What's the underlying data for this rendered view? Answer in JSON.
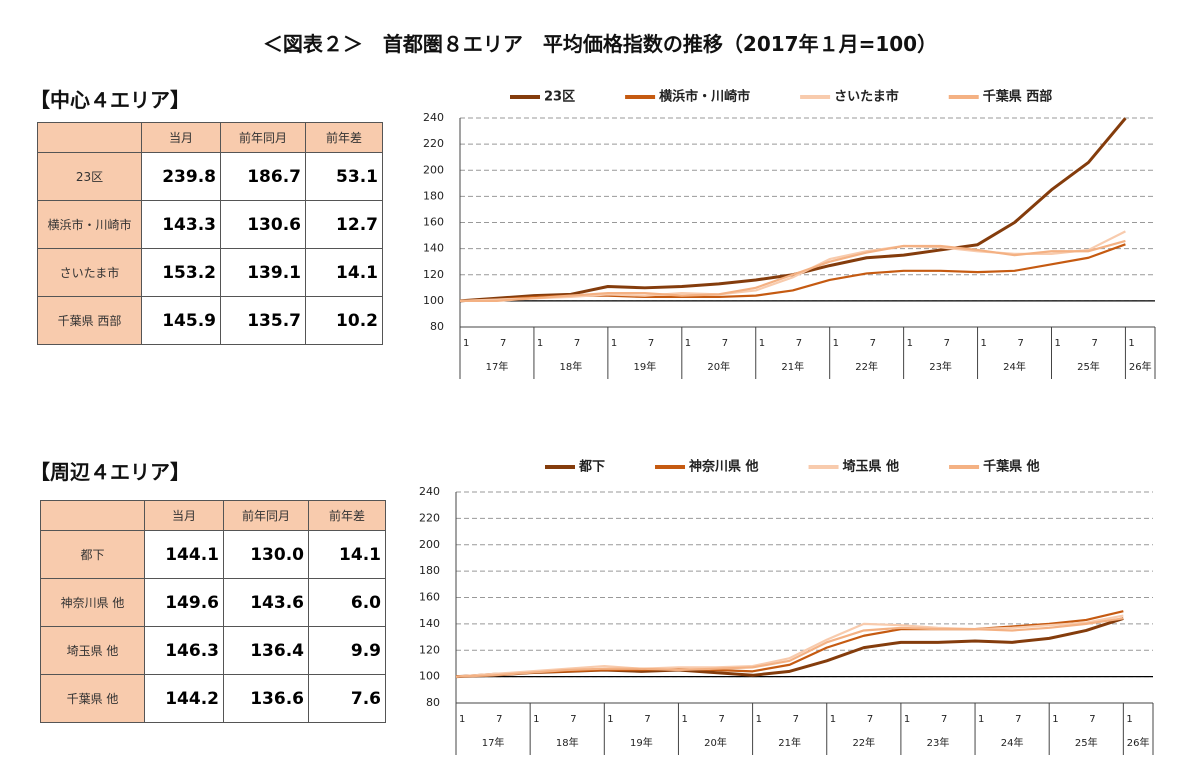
{
  "title": "＜図表２＞　首都圏８エリア　平均価格指数の推移（2017年１月=100）",
  "headings": [
    "【中心４エリア】",
    "【周辺４エリア】"
  ],
  "tables": [
    {
      "columns": [
        "当月",
        "前年同月",
        "前年差"
      ],
      "rows": [
        {
          "label": "23区",
          "values": [
            "239.8",
            "186.7",
            "53.1"
          ]
        },
        {
          "label": "横浜市・川崎市",
          "values": [
            "143.3",
            "130.6",
            "12.7"
          ]
        },
        {
          "label": "さいたま市",
          "values": [
            "153.2",
            "139.1",
            "14.1"
          ]
        },
        {
          "label": "千葉県 西部",
          "values": [
            "145.9",
            "135.7",
            "10.2"
          ]
        }
      ]
    },
    {
      "columns": [
        "当月",
        "前年同月",
        "前年差"
      ],
      "rows": [
        {
          "label": "都下",
          "values": [
            "144.1",
            "130.0",
            "14.1"
          ]
        },
        {
          "label": "神奈川県 他",
          "values": [
            "149.6",
            "143.6",
            "6.0"
          ]
        },
        {
          "label": "埼玉県 他",
          "values": [
            "146.3",
            "136.4",
            "9.9"
          ]
        },
        {
          "label": "千葉県 他",
          "values": [
            "144.2",
            "136.6",
            "7.6"
          ]
        }
      ]
    }
  ],
  "chart_data": [
    {
      "type": "line",
      "categories": [
        "1",
        "7",
        "1",
        "7",
        "1",
        "7",
        "1",
        "7",
        "1",
        "7",
        "1",
        "7",
        "1",
        "7",
        "1",
        "7",
        "1",
        "7",
        "1"
      ],
      "year_labels": [
        "17年",
        "18年",
        "19年",
        "20年",
        "21年",
        "22年",
        "23年",
        "24年",
        "25年",
        "26年"
      ],
      "ylim": [
        80,
        240
      ],
      "yticks": [
        80,
        100,
        120,
        140,
        160,
        180,
        200,
        220,
        240
      ],
      "grid": true,
      "reference_line": 100,
      "series": [
        {
          "name": "23区",
          "color": "#843c0c",
          "values": [
            100,
            102,
            104,
            105,
            111,
            110,
            111,
            113,
            116,
            120,
            127,
            133,
            135,
            139,
            143,
            160,
            185,
            206,
            239.8
          ]
        },
        {
          "name": "横浜市・川崎市",
          "color": "#c55a11",
          "values": [
            100,
            101,
            103,
            104,
            104,
            103,
            103,
            103,
            104,
            108,
            116,
            121,
            123,
            123,
            122,
            123,
            128,
            133,
            143.3
          ]
        },
        {
          "name": "さいたま市",
          "color": "#f8cbad",
          "values": [
            100,
            101,
            102,
            103,
            105,
            104,
            106,
            105,
            108,
            118,
            132,
            138,
            142,
            141,
            138,
            136,
            136,
            139,
            153.2
          ]
        },
        {
          "name": "千葉県 西部",
          "color": "#f4b183",
          "values": [
            100,
            100,
            102,
            104,
            106,
            106,
            104,
            105,
            110,
            120,
            130,
            137,
            142,
            142,
            139,
            135,
            138,
            138,
            145.9
          ]
        }
      ]
    },
    {
      "type": "line",
      "categories": [
        "1",
        "7",
        "1",
        "7",
        "1",
        "7",
        "1",
        "7",
        "1",
        "7",
        "1",
        "7",
        "1",
        "7",
        "1",
        "7",
        "1",
        "7",
        "1"
      ],
      "year_labels": [
        "17年",
        "18年",
        "19年",
        "20年",
        "21年",
        "22年",
        "23年",
        "24年",
        "25年",
        "26年"
      ],
      "ylim": [
        80,
        240
      ],
      "yticks": [
        80,
        100,
        120,
        140,
        160,
        180,
        200,
        220,
        240
      ],
      "grid": true,
      "reference_line": 100,
      "series": [
        {
          "name": "都下",
          "color": "#843c0c",
          "values": [
            100,
            101,
            103,
            104,
            105,
            104,
            105,
            103,
            101,
            104,
            112,
            122,
            126,
            126,
            127,
            126,
            129,
            135,
            144.1
          ]
        },
        {
          "name": "神奈川県 他",
          "color": "#c55a11",
          "values": [
            100,
            102,
            103,
            104,
            105,
            105,
            106,
            105,
            104,
            109,
            122,
            131,
            136,
            136,
            136,
            138,
            140,
            143,
            149.6
          ]
        },
        {
          "name": "埼玉県 他",
          "color": "#f8cbad",
          "values": [
            100,
            102,
            104,
            106,
            108,
            106,
            107,
            107,
            108,
            114,
            128,
            140,
            139,
            137,
            136,
            137,
            139,
            141,
            146.3
          ]
        },
        {
          "name": "千葉県 他",
          "color": "#f4b183",
          "values": [
            100,
            101,
            103,
            105,
            106,
            106,
            105,
            106,
            107,
            112,
            126,
            135,
            137,
            136,
            136,
            135,
            137,
            140,
            144.2
          ]
        }
      ]
    }
  ]
}
